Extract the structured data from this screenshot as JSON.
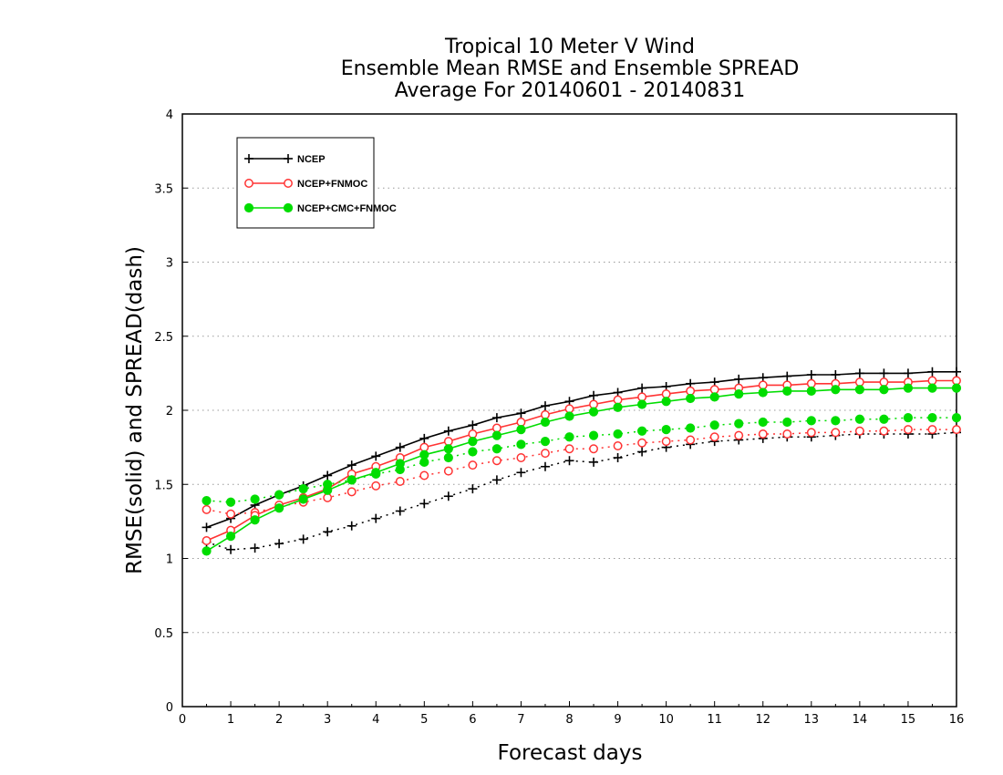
{
  "chart_data": {
    "type": "line",
    "title": [
      "Tropical 10 Meter V Wind",
      "Ensemble Mean RMSE and Ensemble SPREAD",
      "Average For 20140601 - 20140831"
    ],
    "xlabel": "Forecast days",
    "ylabel": "RMSE(solid) and SPREAD(dash)",
    "xlim": [
      0,
      16
    ],
    "ylim": [
      0,
      4
    ],
    "xticks": [
      "0",
      "1",
      "2",
      "3",
      "4",
      "5",
      "6",
      "7",
      "8",
      "9",
      "10",
      "11",
      "12",
      "13",
      "14",
      "15",
      "16"
    ],
    "yticks": [
      "0",
      "0.5",
      "1",
      "1.5",
      "2",
      "2.5",
      "3",
      "3.5",
      "4"
    ],
    "grid": "horizontal-dotted",
    "legend_position": "top-left",
    "x": [
      0.5,
      1,
      1.5,
      2,
      2.5,
      3,
      3.5,
      4,
      4.5,
      5,
      5.5,
      6,
      6.5,
      7,
      7.5,
      8,
      8.5,
      9,
      9.5,
      10,
      10.5,
      11,
      11.5,
      12,
      12.5,
      13,
      13.5,
      14,
      14.5,
      15,
      15.5,
      16
    ],
    "series": [
      {
        "name": "NCEP",
        "color": "#000000",
        "marker": "plus",
        "rmse": [
          1.21,
          1.27,
          1.36,
          1.43,
          1.49,
          1.56,
          1.63,
          1.69,
          1.75,
          1.81,
          1.86,
          1.9,
          1.95,
          1.98,
          2.03,
          2.06,
          2.1,
          2.12,
          2.15,
          2.16,
          2.18,
          2.19,
          2.21,
          2.22,
          2.23,
          2.24,
          2.24,
          2.25,
          2.25,
          2.25,
          2.26,
          2.26
        ],
        "spread": [
          1.11,
          1.06,
          1.07,
          1.1,
          1.13,
          1.18,
          1.22,
          1.27,
          1.32,
          1.37,
          1.42,
          1.47,
          1.53,
          1.58,
          1.62,
          1.66,
          1.65,
          1.68,
          1.72,
          1.75,
          1.77,
          1.79,
          1.8,
          1.81,
          1.82,
          1.82,
          1.83,
          1.84,
          1.84,
          1.84,
          1.84,
          1.85
        ]
      },
      {
        "name": "NCEP+FNMOC",
        "color": "#ff3333",
        "marker": "open-circle",
        "rmse": [
          1.12,
          1.19,
          1.29,
          1.36,
          1.41,
          1.47,
          1.57,
          1.62,
          1.68,
          1.75,
          1.79,
          1.84,
          1.88,
          1.92,
          1.97,
          2.01,
          2.04,
          2.07,
          2.09,
          2.11,
          2.13,
          2.14,
          2.15,
          2.17,
          2.17,
          2.18,
          2.18,
          2.19,
          2.19,
          2.19,
          2.2,
          2.2
        ],
        "spread": [
          1.33,
          1.3,
          1.31,
          1.35,
          1.38,
          1.41,
          1.45,
          1.49,
          1.52,
          1.56,
          1.59,
          1.63,
          1.66,
          1.68,
          1.71,
          1.74,
          1.74,
          1.76,
          1.78,
          1.79,
          1.8,
          1.82,
          1.83,
          1.84,
          1.84,
          1.85,
          1.85,
          1.86,
          1.86,
          1.87,
          1.87,
          1.87
        ]
      },
      {
        "name": "NCEP+CMC+FNMOC",
        "color": "#00dd00",
        "marker": "filled-circle",
        "rmse": [
          1.05,
          1.15,
          1.26,
          1.34,
          1.4,
          1.46,
          1.53,
          1.58,
          1.64,
          1.7,
          1.74,
          1.79,
          1.83,
          1.87,
          1.92,
          1.96,
          1.99,
          2.02,
          2.04,
          2.06,
          2.08,
          2.09,
          2.11,
          2.12,
          2.13,
          2.13,
          2.14,
          2.14,
          2.14,
          2.15,
          2.15,
          2.15
        ],
        "spread": [
          1.39,
          1.38,
          1.4,
          1.43,
          1.47,
          1.5,
          1.53,
          1.57,
          1.6,
          1.65,
          1.68,
          1.72,
          1.74,
          1.77,
          1.79,
          1.82,
          1.83,
          1.84,
          1.86,
          1.87,
          1.88,
          1.9,
          1.91,
          1.92,
          1.92,
          1.93,
          1.93,
          1.94,
          1.94,
          1.95,
          1.95,
          1.95
        ]
      }
    ]
  }
}
